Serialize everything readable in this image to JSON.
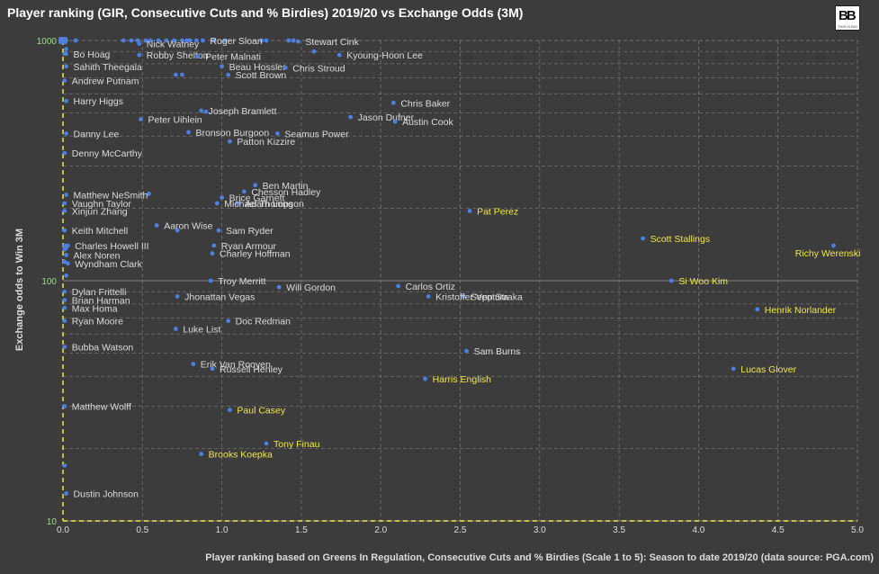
{
  "title": "Player ranking (GIR, Consecutive Cuts and % Birdies) 2019/20 vs Exchange Odds (3M)",
  "logo": {
    "mark": "BB",
    "sub": "THIS IS BIG"
  },
  "chart_data": {
    "type": "scatter",
    "title": "Player ranking (GIR, Consecutive Cuts and % Birdies) 2019/20 vs Exchange Odds (3M)",
    "xlabel": "Player ranking based on Greens In Regulation, Consecutive Cuts and % Birdies (Scale 1 to 5): Season to date 2019/20 (data source: PGA.com)",
    "ylabel": "Exchange odds to Win 3M",
    "xlim": [
      0,
      5
    ],
    "ylim": [
      10,
      1000
    ],
    "yscale": "log",
    "x_ticks": [
      "0.0",
      "0.5",
      "1.0",
      "1.5",
      "2.0",
      "2.5",
      "3.0",
      "3.5",
      "4.0",
      "4.5",
      "5.0"
    ],
    "y_ticks": [
      "10",
      "100",
      "1000"
    ],
    "grid": true,
    "colors": {
      "point": "#4d7fe0",
      "label": "#dcdcdc",
      "highlight": "#f2e64a",
      "zero_line": "#f2e64a",
      "grid": "#8a8a8a"
    },
    "points": [
      {
        "name": "Roger Sloan",
        "x": 0.88,
        "y": 1000,
        "highlight": false
      },
      {
        "name": "Stewart Cink",
        "x": 1.48,
        "y": 990,
        "highlight": false
      },
      {
        "name": "Nick Watney",
        "x": 0.48,
        "y": 970,
        "highlight": false
      },
      {
        "name": "Bo Hoag",
        "x": 0.02,
        "y": 880,
        "highlight": false
      },
      {
        "name": "Robby Shelton",
        "x": 0.48,
        "y": 870,
        "highlight": false
      },
      {
        "name": "Peter Malnati",
        "x": 0.85,
        "y": 860,
        "highlight": false
      },
      {
        "name": "Kyoung-Hoon Lee",
        "x": 1.74,
        "y": 870,
        "highlight": false
      },
      {
        "name": "Sahith Theegala",
        "x": 0.02,
        "y": 780,
        "highlight": false
      },
      {
        "name": "Beau Hossler",
        "x": 1.0,
        "y": 780,
        "highlight": false
      },
      {
        "name": "Chris Stroud",
        "x": 1.4,
        "y": 770,
        "highlight": false
      },
      {
        "name": "Scott Brown",
        "x": 1.04,
        "y": 720,
        "highlight": false
      },
      {
        "name": "Andrew Putnam",
        "x": 0.01,
        "y": 680,
        "highlight": false
      },
      {
        "name": "Harry Higgs",
        "x": 0.02,
        "y": 560,
        "highlight": false
      },
      {
        "name": "Chris Baker",
        "x": 2.08,
        "y": 550,
        "highlight": false
      },
      {
        "name": "Joseph Bramlett",
        "x": 0.87,
        "y": 510,
        "highlight": false
      },
      {
        "name": "Peter Uihlein",
        "x": 0.49,
        "y": 470,
        "highlight": false
      },
      {
        "name": "Jason Dufner",
        "x": 1.81,
        "y": 480,
        "highlight": false
      },
      {
        "name": "Austin Cook",
        "x": 2.09,
        "y": 460,
        "highlight": false
      },
      {
        "name": "Danny Lee",
        "x": 0.02,
        "y": 410,
        "highlight": false
      },
      {
        "name": "Bronson Burgoon",
        "x": 0.79,
        "y": 415,
        "highlight": false
      },
      {
        "name": "Seamus Power",
        "x": 1.35,
        "y": 410,
        "highlight": false
      },
      {
        "name": "Patton Kizzire",
        "x": 1.05,
        "y": 380,
        "highlight": false
      },
      {
        "name": "Denny McCarthy",
        "x": 0.01,
        "y": 340,
        "highlight": false
      },
      {
        "name": "Ben Martin",
        "x": 1.21,
        "y": 250,
        "highlight": false
      },
      {
        "name": "Chesson Hadley",
        "x": 1.14,
        "y": 235,
        "highlight": false
      },
      {
        "name": "Matthew NeSmith",
        "x": 0.02,
        "y": 228,
        "highlight": false
      },
      {
        "name": "Brice Garnett",
        "x": 1.0,
        "y": 222,
        "highlight": false
      },
      {
        "name": "Vaughn Taylor",
        "x": 0.01,
        "y": 210,
        "highlight": false
      },
      {
        "name": "Adam Long",
        "x": 1.1,
        "y": 210,
        "highlight": false
      },
      {
        "name": "Xinjun Zhang",
        "x": 0.01,
        "y": 195,
        "highlight": false
      },
      {
        "name": "Michael Thompson",
        "x": 0.97,
        "y": 210,
        "highlight": false
      },
      {
        "name": "Pat Perez",
        "x": 2.56,
        "y": 195,
        "highlight": true
      },
      {
        "name": "Aaron Wise",
        "x": 0.59,
        "y": 170,
        "highlight": false
      },
      {
        "name": "Keith Mitchell",
        "x": 0.01,
        "y": 162,
        "highlight": false
      },
      {
        "name": "Sam Ryder",
        "x": 0.98,
        "y": 162,
        "highlight": false
      },
      {
        "name": "Scott Stallings",
        "x": 3.65,
        "y": 150,
        "highlight": true
      },
      {
        "name": "Charles Howell III",
        "x": 0.03,
        "y": 140,
        "highlight": false
      },
      {
        "name": "Ryan Armour",
        "x": 0.95,
        "y": 140,
        "highlight": false
      },
      {
        "name": "Richy Werenski",
        "x": 4.85,
        "y": 140,
        "highlight": true
      },
      {
        "name": "Alex Noren",
        "x": 0.02,
        "y": 128,
        "highlight": false
      },
      {
        "name": "Charley Hoffman",
        "x": 0.94,
        "y": 130,
        "highlight": false
      },
      {
        "name": "Wyndham Clark",
        "x": 0.03,
        "y": 118,
        "highlight": false
      },
      {
        "name": "Troy Merritt",
        "x": 0.93,
        "y": 100,
        "highlight": false
      },
      {
        "name": "Si Woo Kim",
        "x": 3.83,
        "y": 100,
        "highlight": true
      },
      {
        "name": "Carlos Ortiz",
        "x": 2.11,
        "y": 95,
        "highlight": false
      },
      {
        "name": "Will Gordon",
        "x": 1.36,
        "y": 94,
        "highlight": false
      },
      {
        "name": "Dylan Frittelli",
        "x": 0.01,
        "y": 90,
        "highlight": false
      },
      {
        "name": "Jhonattan Vegas",
        "x": 0.72,
        "y": 86,
        "highlight": false
      },
      {
        "name": "Sepp Straka",
        "x": 2.52,
        "y": 86,
        "highlight": false
      },
      {
        "name": "Brian Harman",
        "x": 0.01,
        "y": 83,
        "highlight": false
      },
      {
        "name": "Kristoffer Ventura",
        "x": 2.3,
        "y": 86,
        "highlight": false
      },
      {
        "name": "Henrik Norlander",
        "x": 4.37,
        "y": 76,
        "highlight": true
      },
      {
        "name": "Max Homa",
        "x": 0.01,
        "y": 77,
        "highlight": false
      },
      {
        "name": "Ryan Moore",
        "x": 0.01,
        "y": 68,
        "highlight": false
      },
      {
        "name": "Doc Redman",
        "x": 1.04,
        "y": 68,
        "highlight": false
      },
      {
        "name": "Luke List",
        "x": 0.71,
        "y": 63,
        "highlight": false
      },
      {
        "name": "Bubba Watson",
        "x": 0.01,
        "y": 53,
        "highlight": false
      },
      {
        "name": "Sam Burns",
        "x": 2.54,
        "y": 51,
        "highlight": false
      },
      {
        "name": "Erik Van Rooyen",
        "x": 0.82,
        "y": 45,
        "highlight": false
      },
      {
        "name": "Lucas Glover",
        "x": 4.22,
        "y": 43,
        "highlight": true
      },
      {
        "name": "Russell Henley",
        "x": 0.94,
        "y": 43,
        "highlight": false
      },
      {
        "name": "Harris English",
        "x": 2.28,
        "y": 39,
        "highlight": true
      },
      {
        "name": "Matthew Wolff",
        "x": 0.01,
        "y": 30,
        "highlight": false
      },
      {
        "name": "Paul Casey",
        "x": 1.05,
        "y": 29,
        "highlight": true
      },
      {
        "name": "Tony Finau",
        "x": 1.28,
        "y": 21,
        "highlight": true
      },
      {
        "name": "Brooks Koepka",
        "x": 0.87,
        "y": 19,
        "highlight": true
      },
      {
        "name": "Dustin Johnson",
        "x": 0.02,
        "y": 13,
        "highlight": false
      }
    ],
    "unlabeled_points": [
      {
        "x": 0.0,
        "y": 1000
      },
      {
        "x": 0.01,
        "y": 1000
      },
      {
        "x": 0.02,
        "y": 1000
      },
      {
        "x": 0.08,
        "y": 1000
      },
      {
        "x": 0.38,
        "y": 1000
      },
      {
        "x": 0.43,
        "y": 1000
      },
      {
        "x": 0.47,
        "y": 1000
      },
      {
        "x": 0.52,
        "y": 1000
      },
      {
        "x": 0.55,
        "y": 1000
      },
      {
        "x": 0.6,
        "y": 1000
      },
      {
        "x": 0.65,
        "y": 1000
      },
      {
        "x": 0.7,
        "y": 1000
      },
      {
        "x": 0.75,
        "y": 1000
      },
      {
        "x": 0.78,
        "y": 1000
      },
      {
        "x": 0.8,
        "y": 1000
      },
      {
        "x": 0.84,
        "y": 1000
      },
      {
        "x": 0.95,
        "y": 1000
      },
      {
        "x": 1.02,
        "y": 1000
      },
      {
        "x": 1.25,
        "y": 1000
      },
      {
        "x": 1.28,
        "y": 1000
      },
      {
        "x": 1.42,
        "y": 1000
      },
      {
        "x": 1.45,
        "y": 1000
      },
      {
        "x": 1.58,
        "y": 900
      },
      {
        "x": 0.02,
        "y": 920
      },
      {
        "x": 0.71,
        "y": 720
      },
      {
        "x": 0.75,
        "y": 720
      },
      {
        "x": 0.9,
        "y": 505
      },
      {
        "x": 0.01,
        "y": 880
      },
      {
        "x": 0.54,
        "y": 230
      },
      {
        "x": 0.72,
        "y": 162
      },
      {
        "x": 0.01,
        "y": 140
      },
      {
        "x": 0.02,
        "y": 137
      },
      {
        "x": 0.01,
        "y": 135
      },
      {
        "x": 0.01,
        "y": 120
      },
      {
        "x": 0.02,
        "y": 105
      },
      {
        "x": 0.01,
        "y": 17
      }
    ]
  }
}
